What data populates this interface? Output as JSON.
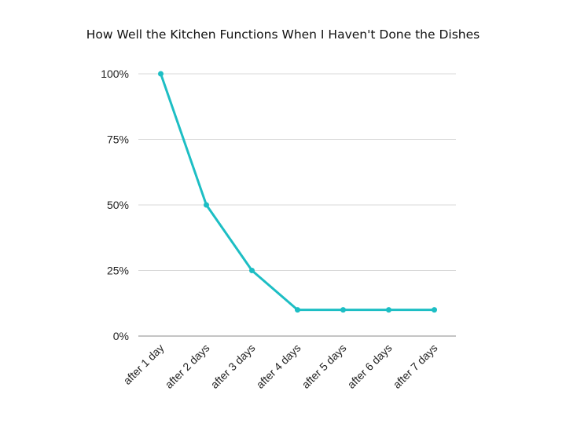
{
  "chart_data": {
    "type": "line",
    "title": "How Well the Kitchen Functions When I Haven't Done the Dishes",
    "xlabel": "",
    "ylabel": "",
    "categories": [
      "after 1 day",
      "after 2 days",
      "after 3 days",
      "after 4 days",
      "after 5 days",
      "after 6 days",
      "after 7 days"
    ],
    "series": [
      {
        "values": [
          100,
          50,
          25,
          10,
          10,
          10,
          10
        ]
      }
    ],
    "ylim": [
      0,
      100
    ],
    "yticks": [
      0,
      25,
      50,
      75,
      100
    ],
    "ytick_labels": [
      "0%",
      "25%",
      "50%",
      "75%",
      "100%"
    ],
    "grid": true,
    "legend": "none",
    "colors": {
      "line": "#1dbec4",
      "grid": "#d9d9d9",
      "axis": "#888888"
    }
  }
}
